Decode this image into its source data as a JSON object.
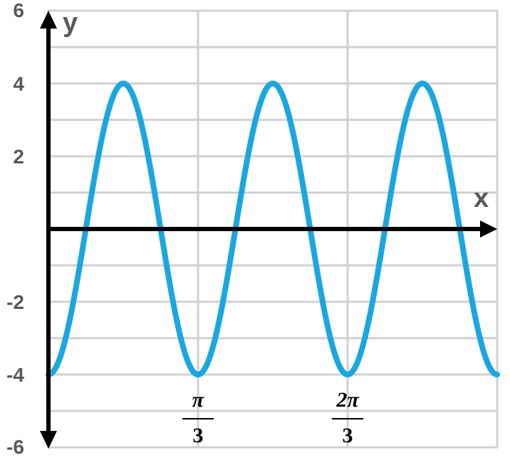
{
  "chart_data": {
    "type": "line",
    "title": "",
    "xlabel": "x",
    "ylabel": "y",
    "ylim": [
      -6,
      6
    ],
    "xlim_pi": [
      0,
      1
    ],
    "grid": true,
    "y_ticks": [
      {
        "value": 6,
        "label": "6"
      },
      {
        "value": 4,
        "label": "4"
      },
      {
        "value": 2,
        "label": "2"
      },
      {
        "value": -2,
        "label": "-2"
      },
      {
        "value": -4,
        "label": "-4"
      },
      {
        "value": -6,
        "label": "-6"
      }
    ],
    "x_ticks": [
      {
        "value_pi": 0.3333,
        "numerator": "π",
        "denominator": "3"
      },
      {
        "value_pi": 0.6667,
        "numerator": "2π",
        "denominator": "3"
      }
    ],
    "series": [
      {
        "function": "y = -4cos(6x)",
        "amplitude": 4,
        "angular_frequency": 6,
        "color": "#1aa7e0"
      }
    ],
    "grid_color": "#d0d0d0",
    "axis_color": "#000000"
  }
}
